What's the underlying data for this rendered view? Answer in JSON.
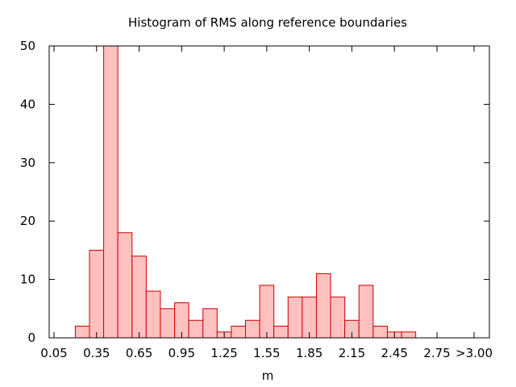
{
  "chart_data": {
    "type": "bar",
    "title": "Histogram of RMS along reference boundaries",
    "xlabel": "m",
    "ylabel": "",
    "xlim": [
      0.0,
      3.0
    ],
    "ylim": [
      0,
      50
    ],
    "bin_width": 0.1,
    "bins": [
      {
        "center": 0.25,
        "value": 2
      },
      {
        "center": 0.35,
        "value": 15
      },
      {
        "center": 0.45,
        "value": 50
      },
      {
        "center": 0.55,
        "value": 18
      },
      {
        "center": 0.65,
        "value": 14
      },
      {
        "center": 0.75,
        "value": 8
      },
      {
        "center": 0.85,
        "value": 5
      },
      {
        "center": 0.95,
        "value": 6
      },
      {
        "center": 1.05,
        "value": 3
      },
      {
        "center": 1.15,
        "value": 5
      },
      {
        "center": 1.25,
        "value": 1
      },
      {
        "center": 1.35,
        "value": 2
      },
      {
        "center": 1.45,
        "value": 3
      },
      {
        "center": 1.55,
        "value": 9
      },
      {
        "center": 1.65,
        "value": 2
      },
      {
        "center": 1.75,
        "value": 7
      },
      {
        "center": 1.85,
        "value": 7
      },
      {
        "center": 1.95,
        "value": 11
      },
      {
        "center": 2.05,
        "value": 7
      },
      {
        "center": 2.15,
        "value": 3
      },
      {
        "center": 2.25,
        "value": 9
      },
      {
        "center": 2.35,
        "value": 2
      },
      {
        "center": 2.45,
        "value": 1
      },
      {
        "center": 2.55,
        "value": 1
      }
    ],
    "x_ticks": [
      {
        "value": 0.05,
        "label": "0.05"
      },
      {
        "value": 0.35,
        "label": "0.35"
      },
      {
        "value": 0.65,
        "label": "0.65"
      },
      {
        "value": 0.95,
        "label": "0.95"
      },
      {
        "value": 1.25,
        "label": "1.25"
      },
      {
        "value": 1.55,
        "label": "1.55"
      },
      {
        "value": 1.85,
        "label": "1.85"
      },
      {
        "value": 2.15,
        "label": "2.15"
      },
      {
        "value": 2.45,
        "label": "2.45"
      },
      {
        "value": 2.75,
        "label": "2.75"
      },
      {
        "value": 3.0,
        "label": ">3.00"
      }
    ],
    "y_ticks": [
      0,
      10,
      20,
      30,
      40,
      50
    ],
    "grid": false,
    "legend": "none",
    "colors": {
      "bar_fill": "#ffc0c0",
      "bar_stroke": "#cc0000",
      "axis": "#000000"
    }
  }
}
